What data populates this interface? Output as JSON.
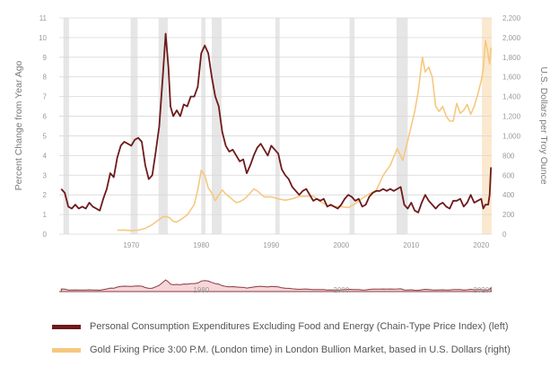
{
  "chart_data": {
    "type": "line",
    "x_range": [
      1959.7,
      2021.5
    ],
    "x_ticks": [
      "1970",
      "1980",
      "1990",
      "2000",
      "2010",
      "2020"
    ],
    "y_left": {
      "label": "Percent Change from Year Ago",
      "range": [
        0,
        11
      ],
      "ticks": [
        "0",
        "1",
        "2",
        "3",
        "4",
        "5",
        "6",
        "7",
        "8",
        "9",
        "10",
        "11"
      ]
    },
    "y_right": {
      "label": "U.S. Dollars per Troy Ounce",
      "range": [
        0,
        2200
      ],
      "ticks": [
        "0",
        "200",
        "400",
        "600",
        "800",
        "1,000",
        "1,200",
        "1,400",
        "1,600",
        "1,800",
        "2,000",
        "2,200"
      ]
    },
    "recessions": [
      [
        1960.3,
        1961.1
      ],
      [
        1969.9,
        1970.9
      ],
      [
        1973.9,
        1975.2
      ],
      [
        1980.0,
        1980.6
      ],
      [
        1981.5,
        1982.9
      ],
      [
        1990.6,
        1991.2
      ],
      [
        2001.2,
        2001.9
      ],
      [
        2007.9,
        2009.5
      ],
      [
        2020.1,
        2021.5
      ]
    ],
    "series": [
      {
        "name": "Personal Consumption Expenditures Excluding Food and Energy (Chain-Type Price Index) (left)",
        "color": "#6e1a1c",
        "axis": "left",
        "points": [
          [
            1960.0,
            2.3
          ],
          [
            1960.5,
            2.1
          ],
          [
            1961.0,
            1.4
          ],
          [
            1961.5,
            1.3
          ],
          [
            1962.0,
            1.5
          ],
          [
            1962.5,
            1.3
          ],
          [
            1963.0,
            1.4
          ],
          [
            1963.5,
            1.3
          ],
          [
            1964.0,
            1.6
          ],
          [
            1964.5,
            1.4
          ],
          [
            1965.0,
            1.3
          ],
          [
            1965.5,
            1.2
          ],
          [
            1966.0,
            1.8
          ],
          [
            1966.5,
            2.3
          ],
          [
            1967.0,
            3.1
          ],
          [
            1967.5,
            2.9
          ],
          [
            1968.0,
            3.9
          ],
          [
            1968.5,
            4.5
          ],
          [
            1969.0,
            4.7
          ],
          [
            1969.5,
            4.6
          ],
          [
            1970.0,
            4.5
          ],
          [
            1970.5,
            4.8
          ],
          [
            1971.0,
            4.9
          ],
          [
            1971.5,
            4.7
          ],
          [
            1972.0,
            3.5
          ],
          [
            1972.5,
            2.8
          ],
          [
            1973.0,
            3.0
          ],
          [
            1973.5,
            4.2
          ],
          [
            1974.0,
            5.5
          ],
          [
            1974.5,
            8.0
          ],
          [
            1974.9,
            10.2
          ],
          [
            1975.3,
            8.5
          ],
          [
            1975.6,
            6.5
          ],
          [
            1976.0,
            6.0
          ],
          [
            1976.5,
            6.3
          ],
          [
            1977.0,
            6.0
          ],
          [
            1977.5,
            6.6
          ],
          [
            1978.0,
            6.5
          ],
          [
            1978.5,
            7.0
          ],
          [
            1979.0,
            7.0
          ],
          [
            1979.5,
            7.5
          ],
          [
            1980.0,
            9.2
          ],
          [
            1980.5,
            9.6
          ],
          [
            1981.0,
            9.2
          ],
          [
            1981.5,
            8.0
          ],
          [
            1982.0,
            7.0
          ],
          [
            1982.5,
            6.5
          ],
          [
            1983.0,
            5.2
          ],
          [
            1983.5,
            4.5
          ],
          [
            1984.0,
            4.2
          ],
          [
            1984.5,
            4.3
          ],
          [
            1985.0,
            4.0
          ],
          [
            1985.5,
            3.7
          ],
          [
            1986.0,
            3.8
          ],
          [
            1986.5,
            3.1
          ],
          [
            1987.0,
            3.5
          ],
          [
            1987.5,
            4.0
          ],
          [
            1988.0,
            4.4
          ],
          [
            1988.5,
            4.6
          ],
          [
            1989.0,
            4.3
          ],
          [
            1989.5,
            4.0
          ],
          [
            1990.0,
            4.5
          ],
          [
            1990.5,
            4.3
          ],
          [
            1991.0,
            4.1
          ],
          [
            1991.5,
            3.3
          ],
          [
            1992.0,
            3.0
          ],
          [
            1992.5,
            2.8
          ],
          [
            1993.0,
            2.4
          ],
          [
            1993.5,
            2.2
          ],
          [
            1994.0,
            2.0
          ],
          [
            1994.5,
            2.2
          ],
          [
            1995.0,
            2.3
          ],
          [
            1995.5,
            2.0
          ],
          [
            1996.0,
            1.7
          ],
          [
            1996.5,
            1.8
          ],
          [
            1997.0,
            1.7
          ],
          [
            1997.5,
            1.8
          ],
          [
            1998.0,
            1.4
          ],
          [
            1998.5,
            1.5
          ],
          [
            1999.0,
            1.4
          ],
          [
            1999.5,
            1.3
          ],
          [
            2000.0,
            1.5
          ],
          [
            2000.5,
            1.8
          ],
          [
            2001.0,
            2.0
          ],
          [
            2001.5,
            1.9
          ],
          [
            2002.0,
            1.7
          ],
          [
            2002.5,
            1.8
          ],
          [
            2003.0,
            1.4
          ],
          [
            2003.5,
            1.5
          ],
          [
            2004.0,
            1.9
          ],
          [
            2004.5,
            2.1
          ],
          [
            2005.0,
            2.2
          ],
          [
            2005.5,
            2.2
          ],
          [
            2006.0,
            2.3
          ],
          [
            2006.5,
            2.2
          ],
          [
            2007.0,
            2.3
          ],
          [
            2007.5,
            2.2
          ],
          [
            2008.0,
            2.3
          ],
          [
            2008.5,
            2.4
          ],
          [
            2009.0,
            1.5
          ],
          [
            2009.5,
            1.3
          ],
          [
            2010.0,
            1.6
          ],
          [
            2010.5,
            1.2
          ],
          [
            2011.0,
            1.1
          ],
          [
            2011.5,
            1.6
          ],
          [
            2012.0,
            2.0
          ],
          [
            2012.5,
            1.7
          ],
          [
            2013.0,
            1.5
          ],
          [
            2013.5,
            1.3
          ],
          [
            2014.0,
            1.5
          ],
          [
            2014.5,
            1.6
          ],
          [
            2015.0,
            1.4
          ],
          [
            2015.5,
            1.3
          ],
          [
            2016.0,
            1.7
          ],
          [
            2016.5,
            1.7
          ],
          [
            2017.0,
            1.8
          ],
          [
            2017.5,
            1.4
          ],
          [
            2018.0,
            1.6
          ],
          [
            2018.5,
            2.0
          ],
          [
            2019.0,
            1.6
          ],
          [
            2019.5,
            1.7
          ],
          [
            2020.0,
            1.8
          ],
          [
            2020.3,
            1.3
          ],
          [
            2020.6,
            1.5
          ],
          [
            2021.0,
            1.5
          ],
          [
            2021.2,
            2.0
          ],
          [
            2021.4,
            3.4
          ]
        ]
      },
      {
        "name": "Gold Fixing Price 3:00 P.M. (London time) in London Bullion Market, based in U.S. Dollars (right)",
        "color": "#f6c87f",
        "axis": "right",
        "points": [
          [
            1968.0,
            40
          ],
          [
            1969.0,
            42
          ],
          [
            1970.0,
            36
          ],
          [
            1971.0,
            41
          ],
          [
            1972.0,
            58
          ],
          [
            1973.0,
            97
          ],
          [
            1974.0,
            150
          ],
          [
            1974.5,
            175
          ],
          [
            1975.0,
            180
          ],
          [
            1975.5,
            165
          ],
          [
            1976.0,
            130
          ],
          [
            1976.5,
            125
          ],
          [
            1977.0,
            145
          ],
          [
            1978.0,
            195
          ],
          [
            1979.0,
            300
          ],
          [
            1979.5,
            450
          ],
          [
            1980.0,
            650
          ],
          [
            1980.5,
            600
          ],
          [
            1981.0,
            470
          ],
          [
            1981.5,
            420
          ],
          [
            1982.0,
            340
          ],
          [
            1982.5,
            400
          ],
          [
            1983.0,
            450
          ],
          [
            1983.5,
            410
          ],
          [
            1984.0,
            380
          ],
          [
            1984.5,
            350
          ],
          [
            1985.0,
            320
          ],
          [
            1985.5,
            330
          ],
          [
            1986.0,
            350
          ],
          [
            1986.5,
            380
          ],
          [
            1987.0,
            420
          ],
          [
            1987.5,
            460
          ],
          [
            1988.0,
            440
          ],
          [
            1989.0,
            380
          ],
          [
            1990.0,
            380
          ],
          [
            1991.0,
            360
          ],
          [
            1992.0,
            345
          ],
          [
            1993.0,
            360
          ],
          [
            1994.0,
            385
          ],
          [
            1995.0,
            385
          ],
          [
            1996.0,
            388
          ],
          [
            1997.0,
            330
          ],
          [
            1998.0,
            295
          ],
          [
            1999.0,
            280
          ],
          [
            2000.0,
            280
          ],
          [
            2001.0,
            270
          ],
          [
            2002.0,
            310
          ],
          [
            2003.0,
            365
          ],
          [
            2004.0,
            410
          ],
          [
            2005.0,
            445
          ],
          [
            2006.0,
            600
          ],
          [
            2007.0,
            700
          ],
          [
            2008.0,
            870
          ],
          [
            2008.8,
            750
          ],
          [
            2009.5,
            950
          ],
          [
            2010.0,
            1100
          ],
          [
            2010.5,
            1250
          ],
          [
            2011.0,
            1450
          ],
          [
            2011.6,
            1800
          ],
          [
            2012.0,
            1650
          ],
          [
            2012.5,
            1700
          ],
          [
            2013.0,
            1600
          ],
          [
            2013.5,
            1300
          ],
          [
            2014.0,
            1250
          ],
          [
            2014.5,
            1300
          ],
          [
            2015.0,
            1200
          ],
          [
            2015.5,
            1150
          ],
          [
            2016.0,
            1150
          ],
          [
            2016.5,
            1330
          ],
          [
            2017.0,
            1230
          ],
          [
            2017.5,
            1260
          ],
          [
            2018.0,
            1320
          ],
          [
            2018.5,
            1220
          ],
          [
            2019.0,
            1300
          ],
          [
            2019.5,
            1420
          ],
          [
            2020.0,
            1560
          ],
          [
            2020.3,
            1680
          ],
          [
            2020.6,
            1970
          ],
          [
            2020.9,
            1870
          ],
          [
            2021.2,
            1730
          ],
          [
            2021.4,
            1900
          ]
        ]
      }
    ],
    "navigator": {
      "labels": [
        "1980",
        "2000",
        "2020"
      ]
    }
  },
  "legend": {
    "items": [
      {
        "label": "Personal Consumption Expenditures Excluding Food and Energy (Chain-Type Price Index) (left)",
        "color": "#6e1a1c"
      },
      {
        "label": "Gold Fixing Price 3:00 P.M. (London time) in London Bullion Market, based in U.S. Dollars (right)",
        "color": "#f6c87f"
      }
    ]
  },
  "colors": {
    "recession": "#e6e6e6",
    "recession_highlight": "#fbe9cf",
    "grid": "#d8d8d8",
    "navigator_fill": "#f6d6d8",
    "navigator_line": "#8a3a3d"
  }
}
